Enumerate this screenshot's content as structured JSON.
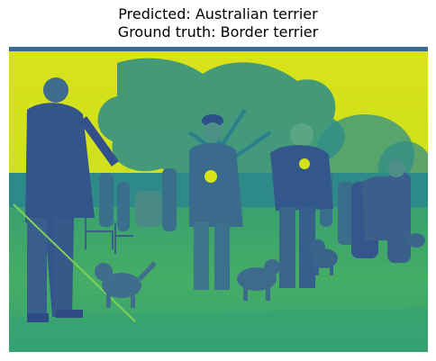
{
  "figure": {
    "predicted_label": "Predicted: Australian terrier",
    "ground_truth_label": "Ground truth: Border terrier"
  },
  "image": {
    "colormap": "viridis",
    "colors": {
      "sky": "#d4e21a",
      "grass": "#3fa36b",
      "dark": "#35608d",
      "mid": "#2a9a87",
      "shadow": "#2f5c8a",
      "light": "#7ccc5f"
    },
    "subjects": [
      "handler-left",
      "handler-center",
      "handler-right",
      "handler-far-right",
      "terrier-left",
      "terrier-center",
      "terrier-right",
      "background-tree",
      "background-crowd"
    ]
  }
}
